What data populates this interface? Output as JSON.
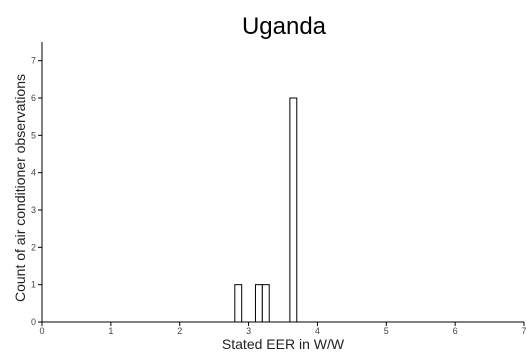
{
  "chart_data": {
    "type": "bar",
    "title": "Uganda",
    "xlabel": "Stated EER in W/W",
    "ylabel": "Count of air conditioner observations",
    "xlim": [
      0,
      7
    ],
    "ylim": [
      0,
      7.5
    ],
    "xticks": [
      0,
      1,
      2,
      3,
      4,
      5,
      6,
      7
    ],
    "yticks": [
      0,
      1,
      2,
      3,
      4,
      5,
      6,
      7
    ],
    "bin_width": 0.1,
    "bins": [
      {
        "x0": 2.8,
        "x1": 2.9,
        "count": 1
      },
      {
        "x0": 3.1,
        "x1": 3.2,
        "count": 1
      },
      {
        "x0": 3.2,
        "x1": 3.3,
        "count": 1
      },
      {
        "x0": 3.6,
        "x1": 3.7,
        "count": 6
      }
    ],
    "grid": false,
    "legend": "none"
  }
}
